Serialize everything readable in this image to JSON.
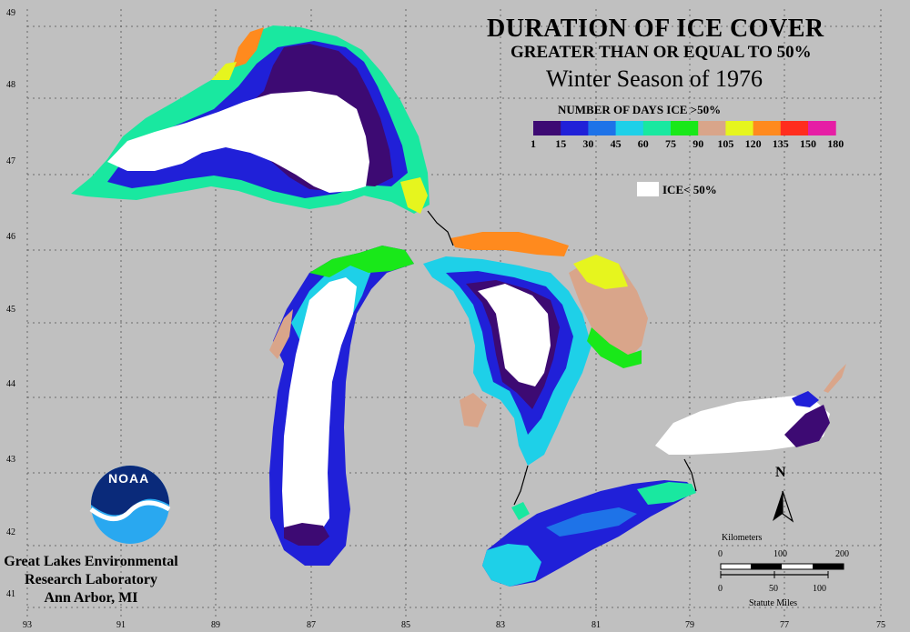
{
  "title": {
    "line1": "DURATION OF ICE COVER",
    "line2": "GREATER THAN OR EQUAL TO 50%",
    "line3": "Winter Season of 1976"
  },
  "legend": {
    "heading": "NUMBER OF DAYS ICE >50%",
    "ticks": [
      "1",
      "15",
      "30",
      "45",
      "60",
      "75",
      "90",
      "105",
      "120",
      "135",
      "150",
      "180"
    ],
    "colors": [
      "#3d0a73",
      "#2020d8",
      "#1e73e8",
      "#1ed0e8",
      "#19e8a0",
      "#19e819",
      "#d9a58a",
      "#e6f51e",
      "#ff8a1e",
      "#ff2d1e",
      "#e61ea5"
    ],
    "ice_label": "ICE< 50%",
    "ice_color": "#ffffff"
  },
  "credit": {
    "line1": "Great Lakes Environmental",
    "line2": "Research Laboratory",
    "line3": "Ann Arbor, MI",
    "logo_text": "NOAA"
  },
  "grid": {
    "lat_labels": [
      "49",
      "48",
      "47",
      "46",
      "45",
      "44",
      "43",
      "42",
      "41"
    ],
    "lon_labels": [
      "93",
      "91",
      "89",
      "87",
      "85",
      "83",
      "81",
      "79",
      "77",
      "75"
    ]
  },
  "scale": {
    "km_label": "Kilometers",
    "km_ticks": [
      "0",
      "100",
      "200"
    ],
    "mi_ticks": [
      "0",
      "50",
      "100"
    ],
    "mi_label": "Statute Miles"
  },
  "north_label": "N"
}
